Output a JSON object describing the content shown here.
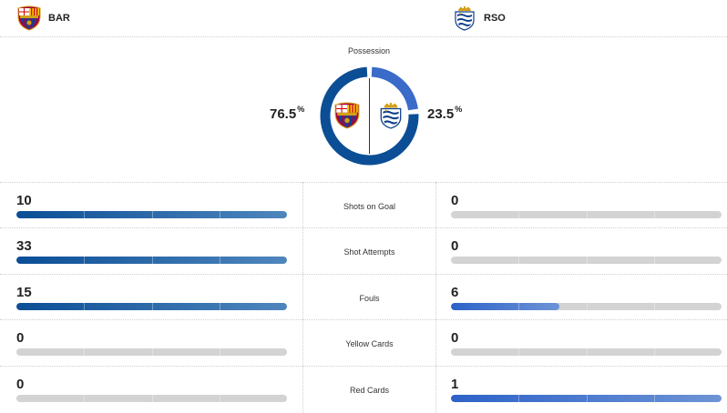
{
  "teams": {
    "home": {
      "abbr": "BAR",
      "crest_icon": "fc-barcelona-crest-icon"
    },
    "away": {
      "abbr": "RSO",
      "crest_icon": "real-sociedad-crest-icon"
    }
  },
  "possession": {
    "title": "Possession",
    "home_pct": "76.5",
    "away_pct": "23.5",
    "percent_symbol": "%",
    "home_share": 0.765,
    "away_share": 0.235
  },
  "colors": {
    "home": "#0b4e96",
    "away": "#3a6bc9",
    "track": "#d3d3d3"
  },
  "stats": [
    {
      "label": "Shots on Goal",
      "home": "10",
      "away": "0",
      "home_share": 1.0,
      "away_share": 0.0
    },
    {
      "label": "Shot Attempts",
      "home": "33",
      "away": "0",
      "home_share": 1.0,
      "away_share": 0.0
    },
    {
      "label": "Fouls",
      "home": "15",
      "away": "6",
      "home_share": 1.0,
      "away_share": 0.4
    },
    {
      "label": "Yellow Cards",
      "home": "0",
      "away": "0",
      "home_share": 0.0,
      "away_share": 0.0
    },
    {
      "label": "Red Cards",
      "home": "0",
      "away": "1",
      "home_share": 0.0,
      "away_share": 1.0
    }
  ]
}
